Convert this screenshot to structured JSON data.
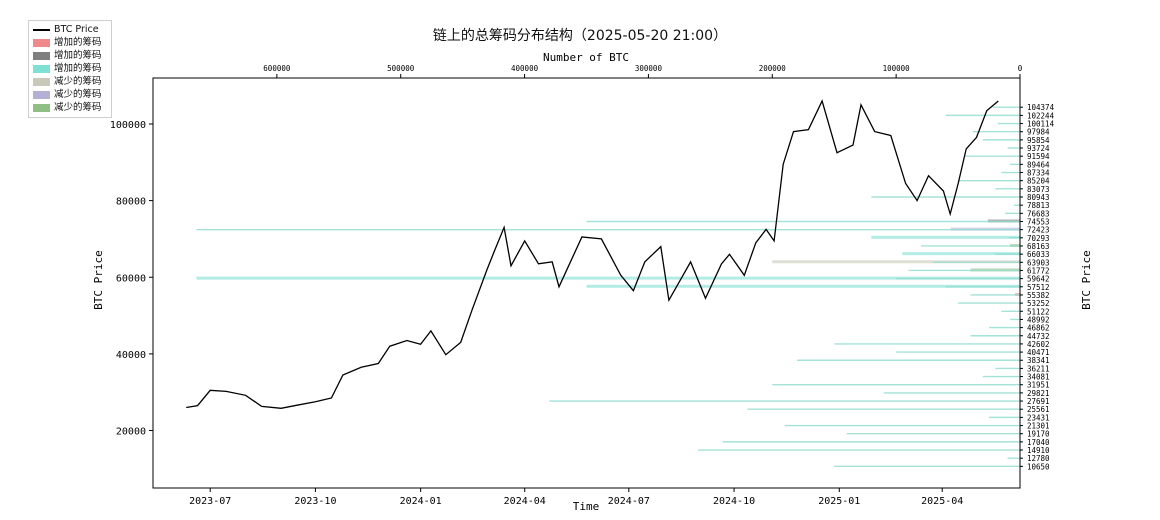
{
  "title": "链上的总筹码分布结构（2025-05-20 21:00）",
  "legend": [
    {
      "label": "BTC Price",
      "kind": "line",
      "color": "#000000"
    },
    {
      "label": "增加的筹码",
      "kind": "patch",
      "color": "#f08a8a"
    },
    {
      "label": "增加的筹码",
      "kind": "patch",
      "color": "#7f7f7f"
    },
    {
      "label": "增加的筹码",
      "kind": "patch",
      "color": "#7fe0d4"
    },
    {
      "label": "减少的筹码",
      "kind": "patch",
      "color": "#c9c9b9"
    },
    {
      "label": "减少的筹码",
      "kind": "patch",
      "color": "#b3b0d6"
    },
    {
      "label": "减少的筹码",
      "kind": "patch",
      "color": "#8fbf84"
    }
  ],
  "chart_data": {
    "type": "line",
    "title": "链上的总筹码分布结构（2025-05-20 21:00）",
    "xlabel": "Time",
    "ylabel": "BTC Price",
    "ylabel_right": "BTC Price",
    "top_xlabel": "Number of BTC",
    "x_ticks": [
      "2023-07",
      "2023-10",
      "2024-01",
      "2024-04",
      "2024-07",
      "2024-10",
      "2025-01",
      "2025-04"
    ],
    "y_ticks": [
      20000,
      40000,
      60000,
      80000,
      100000
    ],
    "ylim": [
      5000,
      112000
    ],
    "top_x_ticks": [
      600000,
      500000,
      400000,
      300000,
      200000,
      100000,
      0
    ],
    "top_xlim": [
      700000,
      0
    ],
    "right_ticks": [
      104374,
      102244,
      100114,
      97984,
      95854,
      93724,
      91594,
      89464,
      87334,
      85204,
      83073,
      80943,
      78813,
      76683,
      74553,
      72423,
      70293,
      68163,
      66033,
      63903,
      61772,
      59642,
      57512,
      55382,
      53252,
      51122,
      48992,
      46862,
      44732,
      42602,
      40471,
      38341,
      36211,
      34081,
      31951,
      29821,
      27691,
      25561,
      23431,
      21301,
      19170,
      17040,
      14910,
      12780,
      10650
    ],
    "chip_counts": [
      22000,
      60000,
      18000,
      38000,
      30000,
      10000,
      45000,
      8000,
      15000,
      50000,
      20000,
      120000,
      5000,
      12000,
      350000,
      665000,
      9000,
      80000,
      20000,
      70000,
      90000,
      100000,
      60000,
      40000,
      50000,
      15000,
      8000,
      25000,
      40000,
      150000,
      100000,
      180000,
      20000,
      30000,
      200000,
      110000,
      380000,
      220000,
      25000,
      190000,
      140000,
      240000,
      260000,
      10000,
      150000
    ],
    "series": [
      {
        "name": "BTC Price",
        "x": [
          "2023-06-10",
          "2023-06-20",
          "2023-07-01",
          "2023-07-15",
          "2023-08-01",
          "2023-08-15",
          "2023-09-01",
          "2023-09-15",
          "2023-10-01",
          "2023-10-15",
          "2023-10-25",
          "2023-11-10",
          "2023-11-25",
          "2023-12-05",
          "2023-12-20",
          "2024-01-01",
          "2024-01-10",
          "2024-01-23",
          "2024-02-05",
          "2024-02-15",
          "2024-02-28",
          "2024-03-05",
          "2024-03-14",
          "2024-03-20",
          "2024-04-01",
          "2024-04-13",
          "2024-04-25",
          "2024-05-01",
          "2024-05-21",
          "2024-06-07",
          "2024-06-24",
          "2024-07-05",
          "2024-07-15",
          "2024-07-29",
          "2024-08-05",
          "2024-08-24",
          "2024-09-06",
          "2024-09-20",
          "2024-09-27",
          "2024-10-10",
          "2024-10-20",
          "2024-10-29",
          "2024-11-05",
          "2024-11-13",
          "2024-11-22",
          "2024-12-05",
          "2024-12-17",
          "2024-12-30",
          "2025-01-13",
          "2025-01-20",
          "2025-02-01",
          "2025-02-15",
          "2025-02-28",
          "2025-03-10",
          "2025-03-20",
          "2025-04-02",
          "2025-04-08",
          "2025-04-15",
          "2025-04-22",
          "2025-05-01",
          "2025-05-10",
          "2025-05-20"
        ],
        "values": [
          26000,
          26500,
          30500,
          30200,
          29200,
          26300,
          25800,
          26600,
          27500,
          28500,
          34500,
          36500,
          37500,
          42000,
          43500,
          42500,
          46000,
          39800,
          43000,
          51500,
          62000,
          66500,
          73000,
          63000,
          69500,
          63500,
          64000,
          57500,
          70500,
          70000,
          60500,
          56500,
          64000,
          68000,
          54000,
          64000,
          54500,
          63500,
          66000,
          60500,
          69000,
          72500,
          69500,
          89500,
          98000,
          98500,
          106000,
          92500,
          94500,
          105000,
          98000,
          97000,
          84500,
          80000,
          86500,
          82500,
          76500,
          84500,
          93500,
          96500,
          103500,
          106000
        ]
      }
    ],
    "chip_patches": [
      {
        "count": 26000,
        "color": "#7f7f7f"
      },
      {
        "count": 56000,
        "color": "#b3b0d6"
      },
      {
        "count": 120000,
        "color": "#7fe0d4"
      },
      {
        "count": 8000,
        "color": "#8fbf84"
      },
      {
        "count": 95000,
        "color": "#7fe0d4"
      },
      {
        "count": 200000,
        "color": "#c9c9b9"
      },
      {
        "count": 40000,
        "color": "#8fbf84"
      },
      {
        "count": 665000,
        "color": "#7fe0d4"
      },
      {
        "count": 350000,
        "color": "#7fe0d4"
      },
      {
        "count": 4000,
        "color": "#f08a8a"
      }
    ]
  }
}
